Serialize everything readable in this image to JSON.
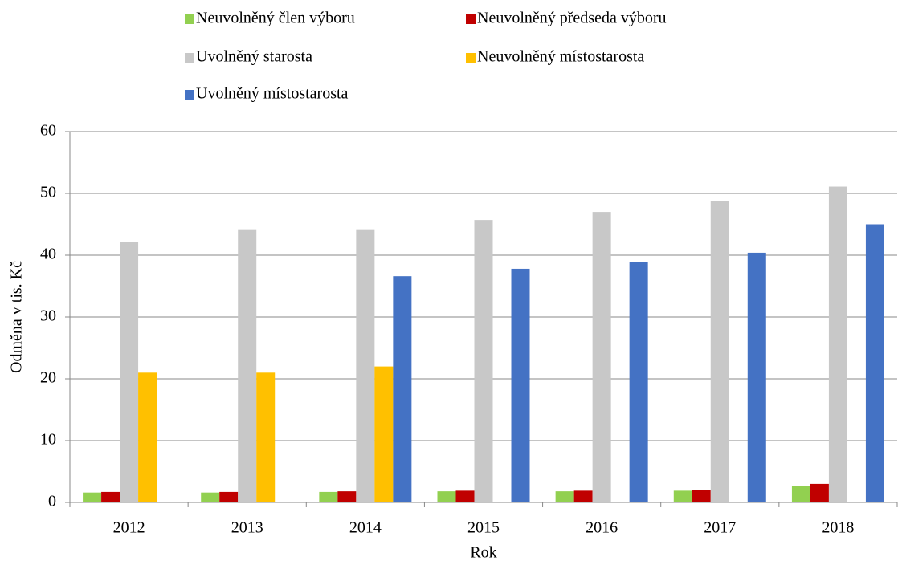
{
  "chart_data": {
    "type": "bar",
    "x_label": "Rok",
    "y_label": "Odměna v tis. Kč",
    "categories": [
      "2012",
      "2013",
      "2014",
      "2015",
      "2016",
      "2017",
      "2018"
    ],
    "series": [
      {
        "name": "Neuvolněný člen výboru",
        "color": "#92d050",
        "values": [
          1.6,
          1.6,
          1.7,
          1.8,
          1.8,
          1.9,
          2.6
        ]
      },
      {
        "name": "Neuvolněný předseda výboru",
        "color": "#c00000",
        "values": [
          1.7,
          1.7,
          1.8,
          1.9,
          1.9,
          2.0,
          3.0
        ]
      },
      {
        "name": "Uvolněný starosta",
        "color": "#c8c8c8",
        "values": [
          42.1,
          44.2,
          44.2,
          45.7,
          47.0,
          48.8,
          51.1
        ]
      },
      {
        "name": "Neuvolněný místostarosta",
        "color": "#ffc000",
        "values": [
          21.0,
          21.0,
          22.0,
          null,
          null,
          null,
          null
        ]
      },
      {
        "name": "Uvolněný místostarosta",
        "color": "#4472c4",
        "values": [
          null,
          null,
          36.6,
          37.8,
          38.9,
          40.4,
          45.0
        ]
      }
    ],
    "ylim": [
      0,
      60
    ],
    "yticks": [
      0,
      10,
      20,
      30,
      40,
      50,
      60
    ],
    "grid": true,
    "legend": "top"
  }
}
